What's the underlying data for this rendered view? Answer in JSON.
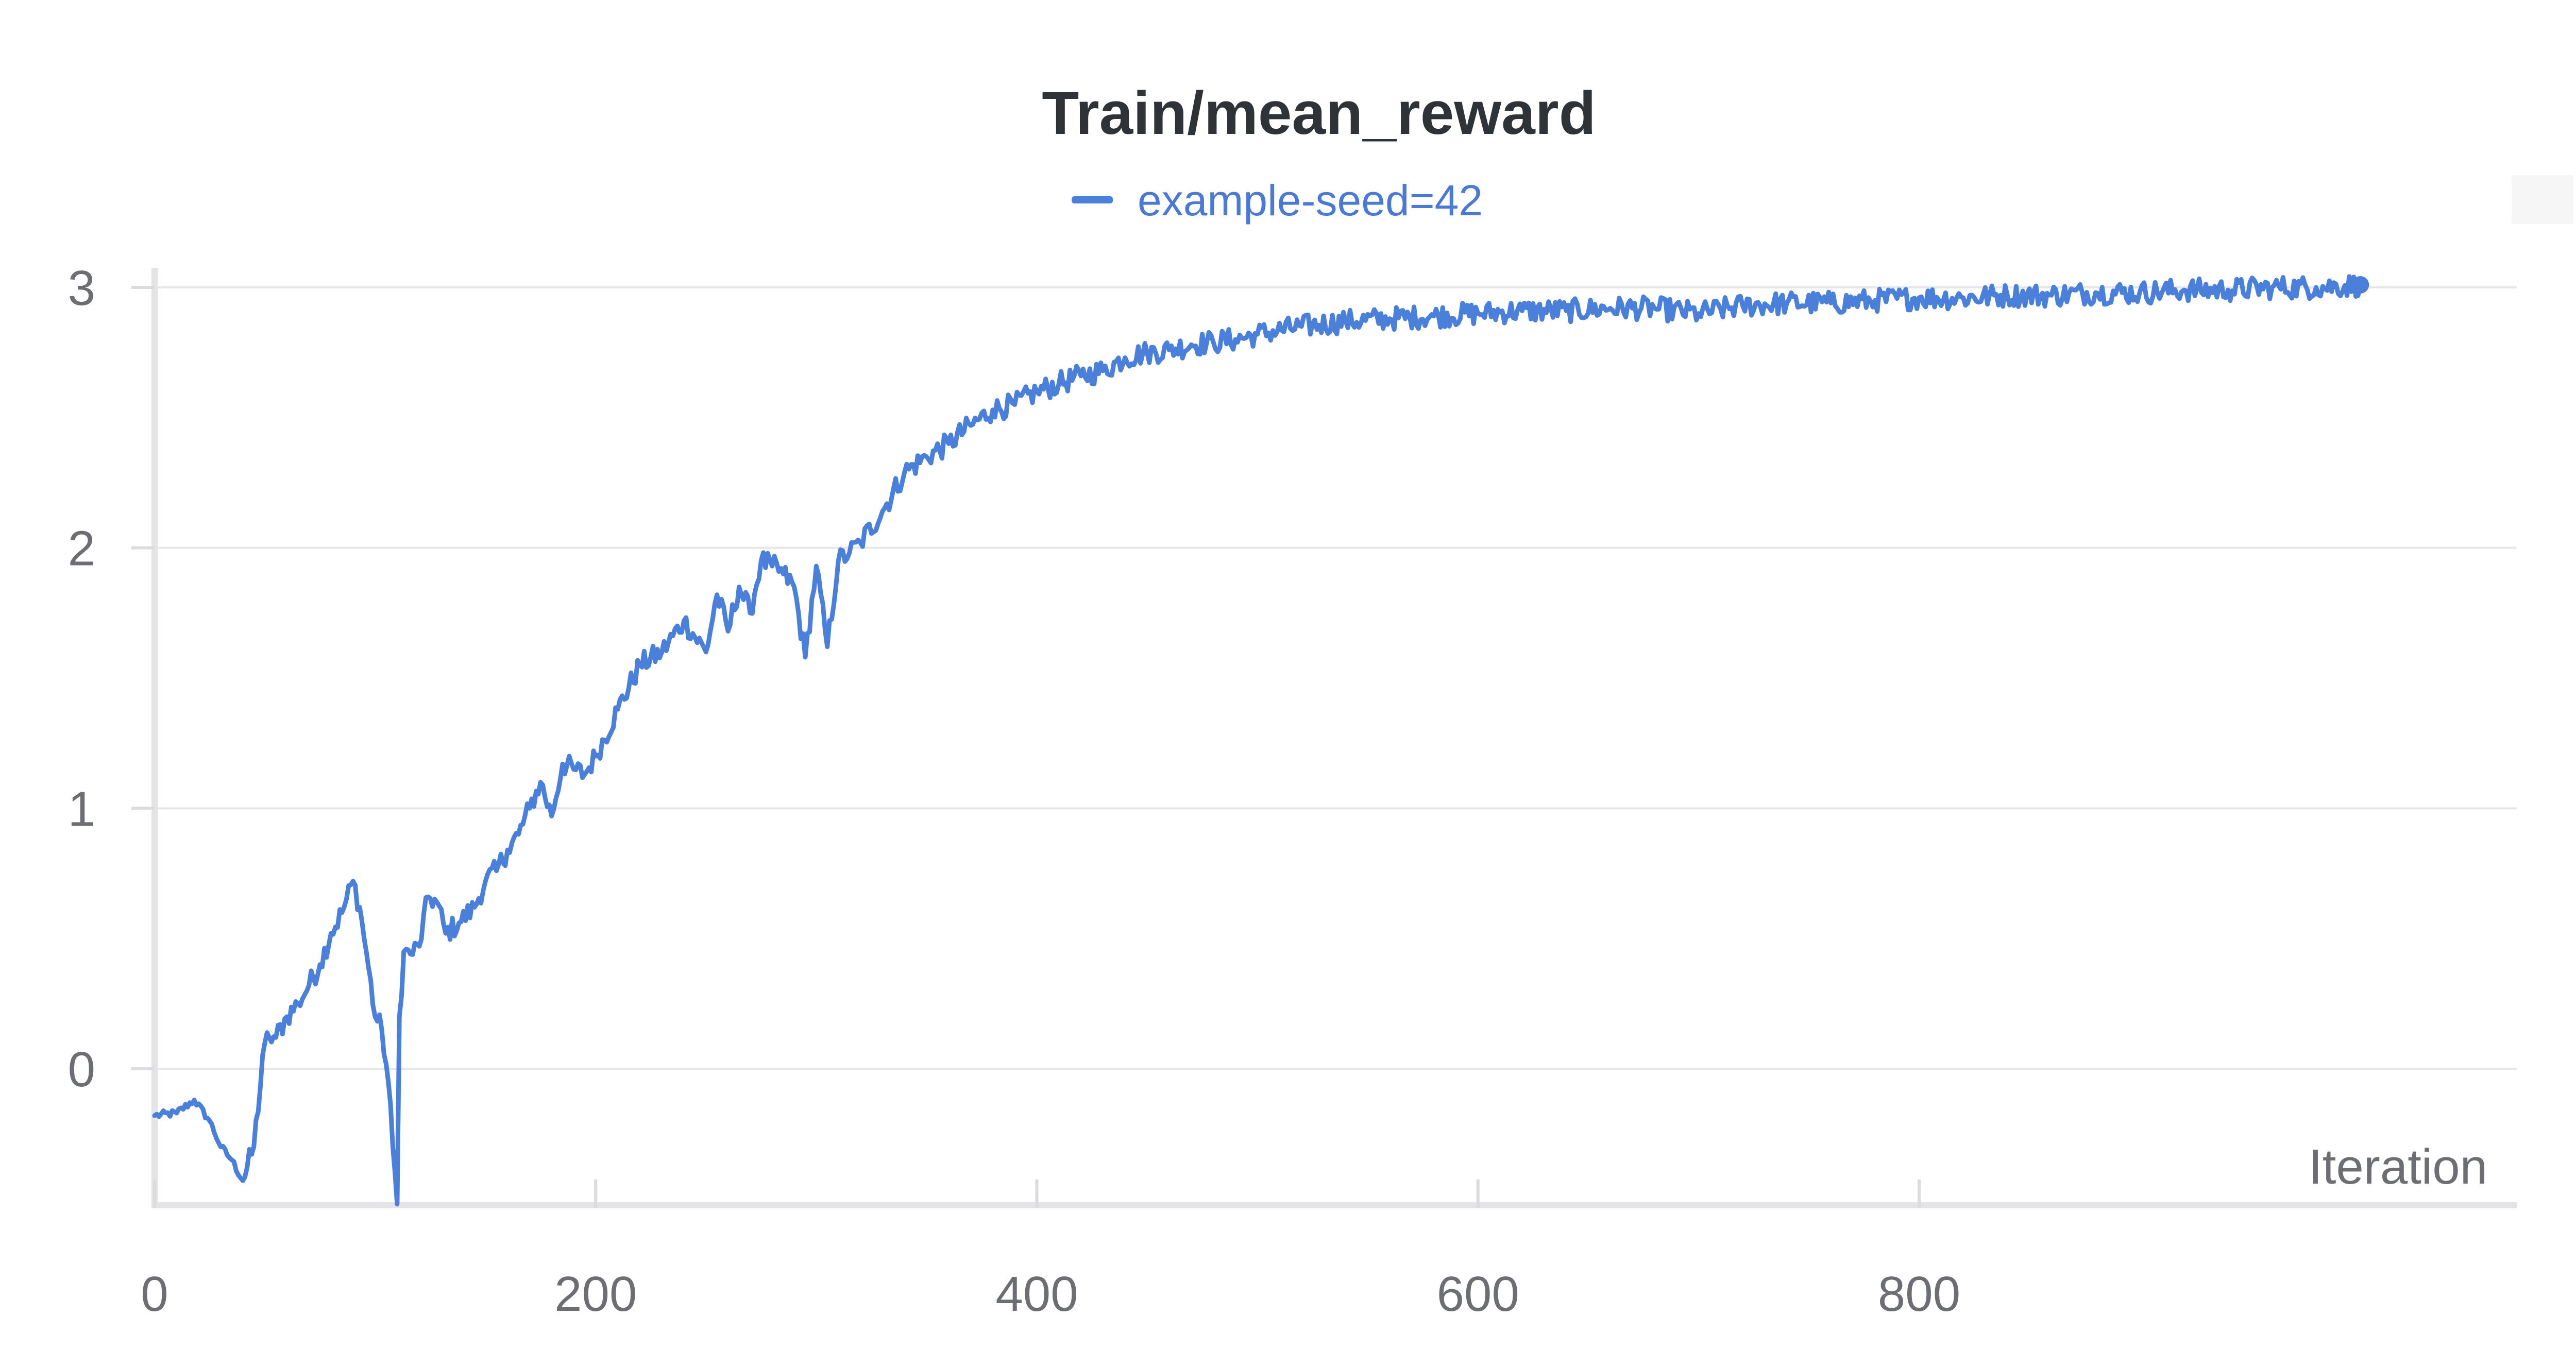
{
  "chart_data": {
    "type": "line",
    "title": "Train/mean_reward",
    "xlabel": "Iteration",
    "ylabel": "",
    "xlim": [
      0,
      1000
    ],
    "ylim": [
      -0.52,
      3.05
    ],
    "x_ticks": [
      0,
      200,
      400,
      600,
      800
    ],
    "y_ticks": [
      0,
      1,
      2,
      3
    ],
    "grid": true,
    "legend_position": "top-center",
    "series": [
      {
        "name": "example-seed=42",
        "color": "#4a80d9",
        "x": [
          0,
          10,
          18,
          25,
          30,
          35,
          40,
          45,
          50,
          52,
          55,
          60,
          65,
          70,
          75,
          80,
          85,
          90,
          93,
          96,
          100,
          103,
          106,
          108,
          110,
          111,
          113,
          116,
          120,
          124,
          128,
          132,
          138,
          145,
          150,
          155,
          160,
          165,
          170,
          175,
          180,
          185,
          190,
          195,
          200,
          210,
          220,
          230,
          240,
          250,
          255,
          260,
          265,
          270,
          275,
          280,
          285,
          290,
          295,
          300,
          305,
          310,
          315,
          320,
          330,
          340,
          350,
          360,
          370,
          380,
          390,
          400,
          410,
          420,
          430,
          440,
          450,
          460,
          470,
          480,
          490,
          500,
          520,
          540,
          560,
          580,
          600,
          620,
          640,
          660,
          680,
          700,
          720,
          740,
          760,
          780,
          800,
          820,
          840,
          860,
          880,
          900,
          920,
          940,
          960,
          980,
          1000
        ],
        "y": [
          -0.18,
          -0.17,
          -0.12,
          -0.2,
          -0.3,
          -0.35,
          -0.43,
          -0.3,
          0.1,
          0.12,
          0.12,
          0.2,
          0.25,
          0.32,
          0.4,
          0.52,
          0.6,
          0.72,
          0.62,
          0.45,
          0.2,
          0.15,
          -0.05,
          -0.3,
          -0.52,
          0.2,
          0.45,
          0.44,
          0.47,
          0.66,
          0.64,
          0.52,
          0.56,
          0.62,
          0.72,
          0.76,
          0.84,
          0.9,
          1.0,
          1.1,
          0.97,
          1.17,
          1.15,
          1.13,
          1.2,
          1.38,
          1.55,
          1.6,
          1.72,
          1.6,
          1.82,
          1.68,
          1.85,
          1.75,
          1.95,
          1.93,
          1.9,
          1.85,
          1.58,
          1.93,
          1.62,
          1.95,
          1.98,
          2.02,
          2.14,
          2.29,
          2.35,
          2.4,
          2.47,
          2.53,
          2.55,
          2.6,
          2.63,
          2.66,
          2.68,
          2.73,
          2.75,
          2.76,
          2.78,
          2.79,
          2.8,
          2.82,
          2.85,
          2.87,
          2.88,
          2.89,
          2.9,
          2.91,
          2.91,
          2.92,
          2.92,
          2.9,
          2.93,
          2.94,
          2.94,
          2.95,
          2.96,
          2.96,
          2.97,
          2.97,
          2.98,
          2.98,
          2.99,
          2.99,
          3.0,
          3.0,
          3.01
        ]
      }
    ]
  }
}
